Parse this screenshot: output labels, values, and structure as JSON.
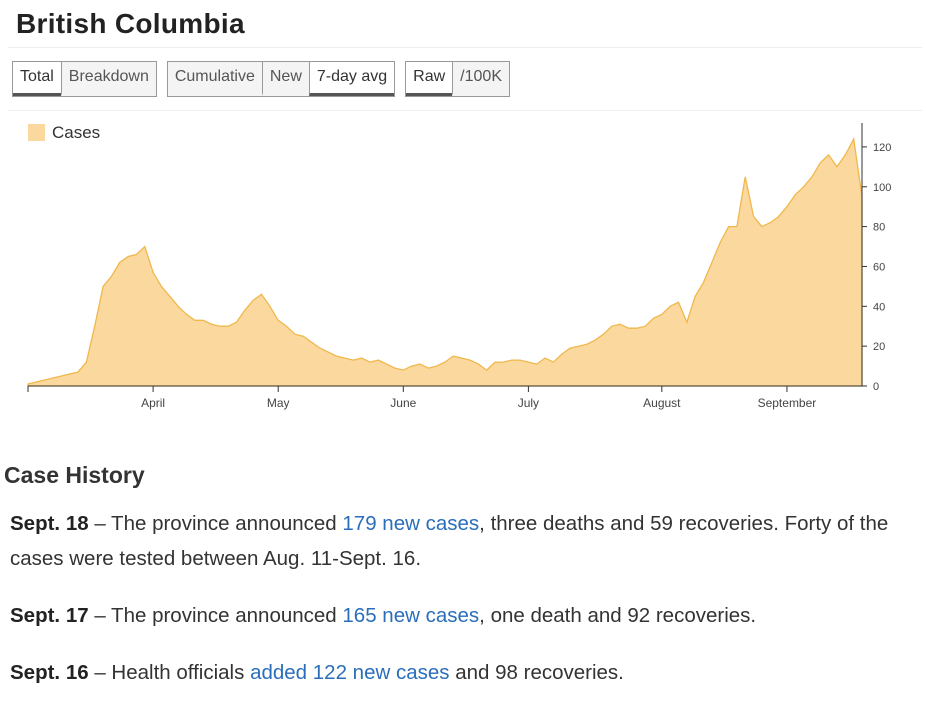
{
  "header": {
    "title": "British Columbia"
  },
  "buttons": [
    {
      "options": [
        "Total",
        "Breakdown"
      ],
      "active": 0
    },
    {
      "options": [
        "Cumulative",
        "New",
        "7-day avg"
      ],
      "active": 2
    },
    {
      "options": [
        "Raw",
        "/100K"
      ],
      "active": 0
    }
  ],
  "chart_data": {
    "type": "area",
    "categories": [
      null,
      null,
      null,
      null,
      null,
      null,
      null,
      null,
      null,
      null,
      null,
      null,
      null,
      null,
      null,
      "April",
      null,
      null,
      null,
      null,
      null,
      null,
      null,
      null,
      null,
      null,
      null,
      null,
      null,
      null,
      "May",
      null,
      null,
      null,
      null,
      null,
      null,
      null,
      null,
      null,
      null,
      null,
      null,
      null,
      null,
      "June",
      null,
      null,
      null,
      null,
      null,
      null,
      null,
      null,
      null,
      null,
      null,
      null,
      null,
      null,
      "July",
      null,
      null,
      null,
      null,
      null,
      null,
      null,
      null,
      null,
      null,
      null,
      null,
      null,
      null,
      null,
      "August",
      null,
      null,
      null,
      null,
      null,
      null,
      null,
      null,
      null,
      null,
      null,
      null,
      null,
      null,
      "September",
      null,
      null,
      null,
      null,
      null,
      null,
      null,
      null,
      null
    ],
    "series": [
      {
        "name": "Cases",
        "color": "#fad89e",
        "stroke": "#f0b84c",
        "values": [
          1,
          2,
          3,
          4,
          5,
          6,
          7,
          12,
          30,
          50,
          55,
          62,
          65,
          66,
          70,
          57,
          50,
          45,
          40,
          36,
          33,
          33,
          31,
          30,
          30,
          32,
          38,
          43,
          46,
          40,
          33,
          30,
          26,
          25,
          22,
          19,
          17,
          15,
          14,
          13,
          14,
          12,
          13,
          11,
          9,
          8,
          10,
          11,
          9,
          10,
          12,
          15,
          14,
          13,
          11,
          8,
          12,
          12,
          13,
          13,
          12,
          11,
          14,
          12,
          16,
          19,
          20,
          21,
          23,
          26,
          30,
          31,
          29,
          29,
          30,
          34,
          36,
          40,
          42,
          32,
          45,
          52,
          62,
          72,
          80,
          80,
          105,
          85,
          80,
          82,
          85,
          90,
          96,
          100,
          105,
          112,
          116,
          110,
          116,
          124,
          95
        ]
      }
    ],
    "ylim": [
      0,
      132
    ],
    "yticks": [
      0,
      20,
      40,
      60,
      80,
      100,
      120
    ],
    "legend": "top-left"
  },
  "history": {
    "title": "Case History",
    "entries": [
      {
        "date": "Sept. 18",
        "before": " – The province announced ",
        "link": "179 new cases",
        "after": ", three deaths and 59 recoveries. Forty of the cases were tested between Aug. 11-Sept. 16."
      },
      {
        "date": "Sept. 17",
        "before": " – The province announced ",
        "link": "165 new cases",
        "after": ", one death and 92 recoveries."
      },
      {
        "date": "Sept. 16",
        "before": " – Health officials ",
        "link": "added 122 new cases",
        "after": " and 98 recoveries."
      }
    ]
  }
}
